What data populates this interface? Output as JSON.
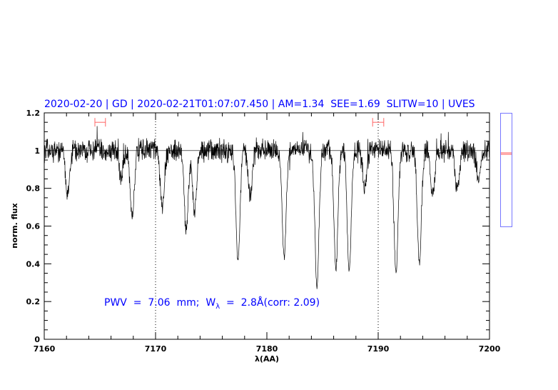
{
  "chart_data": {
    "type": "line",
    "title": "2020-02-20 | GD | 2020-02-21T01:07:07.450 | AM=1.34  SEE=1.69  SLITW=10 | UVES",
    "xlabel": "λ(AA)",
    "ylabel": "norm. flux",
    "xlim": [
      7160,
      7200
    ],
    "ylim": [
      0,
      1.2
    ],
    "xticks": [
      7160,
      7170,
      7180,
      7190,
      7200
    ],
    "yticks": [
      0,
      0.2,
      0.4,
      0.6,
      0.8,
      1,
      1.2
    ],
    "xtick_labels": [
      "7160",
      "7170",
      "7180",
      "7190",
      "7200"
    ],
    "ytick_labels": [
      "0",
      "0.2",
      "0.4",
      "0.6",
      "0.8",
      "1",
      "1.2"
    ],
    "reference_line_y": 1.0,
    "dotted_vlines_x": [
      7170,
      7190
    ],
    "continuum_windows": [
      [
        7164.55,
        7165.5
      ],
      [
        7189.5,
        7190.5
      ]
    ],
    "continuum_window_y": 1.15,
    "annotation": {
      "prefix": "PWV  =  7.06  mm;  W",
      "sub": "λ",
      "suffix": "  =  2.8Å(corr: 2.09)"
    },
    "absorption_features": [
      {
        "wavelength": 7162.1,
        "min_flux": 0.77
      },
      {
        "wavelength": 7166.9,
        "min_flux": 0.86
      },
      {
        "wavelength": 7167.9,
        "min_flux": 0.65
      },
      {
        "wavelength": 7170.6,
        "min_flux": 0.7
      },
      {
        "wavelength": 7172.75,
        "min_flux": 0.58
      },
      {
        "wavelength": 7173.5,
        "min_flux": 0.68
      },
      {
        "wavelength": 7177.4,
        "min_flux": 0.42
      },
      {
        "wavelength": 7178.5,
        "min_flux": 0.76
      },
      {
        "wavelength": 7181.55,
        "min_flux": 0.44
      },
      {
        "wavelength": 7184.5,
        "min_flux": 0.28
      },
      {
        "wavelength": 7186.2,
        "min_flux": 0.38
      },
      {
        "wavelength": 7187.4,
        "min_flux": 0.36
      },
      {
        "wavelength": 7188.8,
        "min_flux": 0.8
      },
      {
        "wavelength": 7191.6,
        "min_flux": 0.36
      },
      {
        "wavelength": 7193.7,
        "min_flux": 0.41
      },
      {
        "wavelength": 7194.9,
        "min_flux": 0.76
      },
      {
        "wavelength": 7197.1,
        "min_flux": 0.8
      },
      {
        "wavelength": 7199.0,
        "min_flux": 0.86
      }
    ],
    "colors": {
      "spectrum": "#000000",
      "title": "#0000ff",
      "window": "#ff6666",
      "side_box": "#7777ff",
      "side_marker": "#ff5555"
    },
    "side_panel": {
      "marker_level": 0.98
    }
  }
}
